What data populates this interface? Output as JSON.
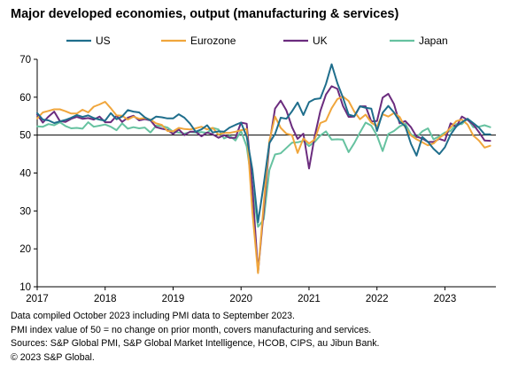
{
  "chart_data": {
    "type": "line",
    "title": "Major developed economies, output (manufacturing & services)",
    "legend_position": "top",
    "xlabel": "",
    "ylabel": "",
    "ylim": [
      10,
      70
    ],
    "yticks": [
      10,
      20,
      30,
      40,
      50,
      60,
      70
    ],
    "xlim": [
      2017.0,
      2023.75
    ],
    "xticks": [
      "2017",
      "2018",
      "2019",
      "2020",
      "2021",
      "2022",
      "2023"
    ],
    "reference_line": 50,
    "grid": false,
    "x": [
      2017.0,
      2017.083,
      2017.167,
      2017.25,
      2017.333,
      2017.417,
      2017.5,
      2017.583,
      2017.667,
      2017.75,
      2017.833,
      2017.917,
      2018.0,
      2018.083,
      2018.167,
      2018.25,
      2018.333,
      2018.417,
      2018.5,
      2018.583,
      2018.667,
      2018.75,
      2018.833,
      2018.917,
      2019.0,
      2019.083,
      2019.167,
      2019.25,
      2019.333,
      2019.417,
      2019.5,
      2019.583,
      2019.667,
      2019.75,
      2019.833,
      2019.917,
      2020.0,
      2020.083,
      2020.167,
      2020.25,
      2020.333,
      2020.417,
      2020.5,
      2020.583,
      2020.667,
      2020.75,
      2020.833,
      2020.917,
      2021.0,
      2021.083,
      2021.167,
      2021.25,
      2021.333,
      2021.417,
      2021.5,
      2021.583,
      2021.667,
      2021.75,
      2021.833,
      2021.917,
      2022.0,
      2022.083,
      2022.167,
      2022.25,
      2022.333,
      2022.417,
      2022.5,
      2022.583,
      2022.667,
      2022.75,
      2022.833,
      2022.917,
      2023.0,
      2023.083,
      2023.167,
      2023.25,
      2023.333,
      2023.417,
      2023.5,
      2023.583,
      2023.667
    ],
    "series": [
      {
        "name": "US",
        "color": "#1f6e8c",
        "values": [
          55.8,
          54.1,
          53.9,
          53.2,
          53.6,
          54.0,
          54.6,
          55.3,
          54.8,
          55.2,
          54.5,
          54.1,
          53.8,
          55.8,
          54.2,
          54.9,
          56.6,
          56.2,
          56.0,
          54.7,
          53.9,
          54.9,
          54.7,
          54.4,
          54.4,
          55.5,
          54.6,
          53.0,
          50.9,
          51.5,
          52.6,
          50.7,
          51.0,
          50.9,
          52.0,
          52.7,
          53.3,
          49.6,
          40.9,
          27.0,
          37.0,
          47.9,
          50.3,
          54.6,
          54.3,
          56.3,
          58.6,
          55.3,
          58.7,
          59.5,
          59.7,
          63.5,
          68.7,
          63.7,
          59.9,
          55.4,
          55.0,
          57.6,
          57.2,
          57.0,
          51.1,
          55.9,
          57.7,
          56.0,
          53.6,
          52.3,
          47.7,
          44.6,
          49.5,
          48.2,
          46.4,
          45.0,
          46.8,
          50.1,
          52.3,
          53.4,
          54.3,
          53.2,
          52.0,
          50.2,
          50.2
        ]
      },
      {
        "name": "Eurozone",
        "color": "#f0a63c",
        "values": [
          54.4,
          56.0,
          56.4,
          56.8,
          56.8,
          56.3,
          55.7,
          55.7,
          56.7,
          56.0,
          57.5,
          58.1,
          58.8,
          57.1,
          55.2,
          55.1,
          54.1,
          54.9,
          54.3,
          54.5,
          54.1,
          53.1,
          52.7,
          51.1,
          51.0,
          51.9,
          51.6,
          51.5,
          51.8,
          52.2,
          51.5,
          51.9,
          50.1,
          50.6,
          50.6,
          50.9,
          51.3,
          51.6,
          29.7,
          13.6,
          31.9,
          48.5,
          54.9,
          51.9,
          50.4,
          50.0,
          45.3,
          49.1,
          47.8,
          48.8,
          53.2,
          53.8,
          57.1,
          59.5,
          60.2,
          59.0,
          56.2,
          54.2,
          55.4,
          53.3,
          52.3,
          55.5,
          54.9,
          55.8,
          54.8,
          52.0,
          49.9,
          48.9,
          48.1,
          47.3,
          47.8,
          49.3,
          50.3,
          52.0,
          53.7,
          54.1,
          52.8,
          49.9,
          48.6,
          46.7,
          47.2
        ]
      },
      {
        "name": "UK",
        "color": "#6b2c7e",
        "values": [
          55.4,
          53.3,
          54.9,
          56.2,
          53.7,
          53.5,
          54.3,
          54.8,
          54.3,
          54.5,
          54.1,
          54.9,
          53.4,
          53.4,
          55.1,
          53.5,
          54.6,
          55.1,
          53.9,
          54.2,
          53.9,
          52.1,
          51.7,
          51.4,
          50.3,
          51.5,
          50.0,
          50.9,
          50.9,
          49.7,
          50.7,
          50.2,
          49.3,
          50.0,
          49.3,
          49.3,
          53.3,
          53.0,
          36.0,
          13.8,
          30.0,
          47.7,
          57.0,
          59.1,
          56.5,
          52.1,
          49.0,
          50.4,
          41.2,
          49.6,
          56.4,
          60.7,
          62.9,
          62.2,
          57.7,
          54.8,
          54.9,
          57.6,
          57.6,
          53.6,
          53.7,
          59.9,
          60.9,
          58.2,
          53.1,
          53.7,
          52.1,
          49.6,
          49.1,
          48.2,
          48.2,
          49.0,
          48.5,
          53.1,
          52.2,
          54.9,
          54.0,
          52.8,
          50.8,
          48.6,
          48.5
        ]
      },
      {
        "name": "Japan",
        "color": "#66c2a0",
        "values": [
          52.3,
          52.2,
          52.9,
          52.6,
          53.4,
          52.4,
          51.8,
          51.9,
          51.7,
          53.4,
          52.2,
          52.5,
          52.8,
          52.2,
          51.3,
          53.1,
          51.7,
          52.1,
          51.8,
          52.0,
          50.7,
          52.5,
          52.4,
          52.0,
          50.9,
          50.7,
          50.4,
          50.8,
          50.7,
          50.8,
          50.6,
          51.9,
          51.5,
          49.1,
          49.8,
          48.6,
          51.1,
          47.0,
          36.2,
          25.8,
          27.8,
          40.8,
          44.9,
          45.2,
          46.6,
          48.0,
          48.1,
          48.5,
          47.1,
          48.2,
          49.9,
          51.0,
          48.8,
          48.9,
          48.8,
          45.5,
          47.9,
          50.7,
          53.3,
          52.5,
          49.9,
          45.8,
          50.3,
          51.1,
          52.3,
          53.0,
          50.2,
          49.4,
          51.0,
          51.8,
          48.9,
          49.7,
          50.7,
          51.1,
          52.9,
          52.9,
          54.3,
          52.1,
          52.2,
          52.6,
          52.1
        ]
      }
    ]
  },
  "footnotes": [
    "Data compiled October 2023 including PMI data to September 2023.",
    "PMI index value of 50 = no change on prior month, covers manufacturing and services.",
    "Sources: S&P Global PMI, S&P Global Market Intelligence, HCOB, CIPS, au Jibun Bank.",
    "© 2023 S&P Global."
  ]
}
